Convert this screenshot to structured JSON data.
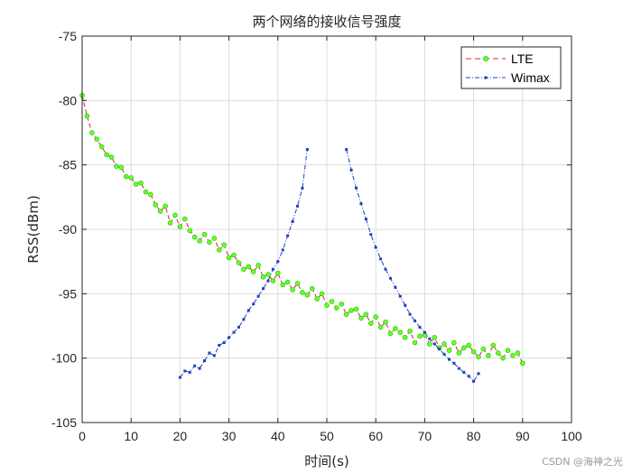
{
  "chart_data": {
    "type": "line",
    "title": "两个网络的接收信号强度",
    "xlabel": "时间(s)",
    "ylabel": "RSS(dBm)",
    "xlim": [
      0,
      100
    ],
    "ylim": [
      -105,
      -75
    ],
    "xticks": [
      "0",
      "10",
      "20",
      "30",
      "40",
      "50",
      "60",
      "70",
      "80",
      "90",
      "100"
    ],
    "yticks": [
      "-75",
      "-80",
      "-85",
      "-90",
      "-95",
      "-100",
      "-105"
    ],
    "grid": true,
    "legend_position": "top-right",
    "colors": {
      "lte_line": "#d62728",
      "lte_marker": "#66ff33",
      "wimax": "#1f3fbf"
    },
    "series": [
      {
        "name": "LTE",
        "x": [
          0,
          1,
          2,
          3,
          4,
          5,
          6,
          7,
          8,
          9,
          10,
          11,
          12,
          13,
          14,
          15,
          16,
          17,
          18,
          19,
          20,
          21,
          22,
          23,
          24,
          25,
          26,
          27,
          28,
          29,
          30,
          31,
          32,
          33,
          34,
          35,
          36,
          37,
          38,
          39,
          40,
          41,
          42,
          43,
          44,
          45,
          46,
          47,
          48,
          49,
          50,
          51,
          52,
          53,
          54,
          55,
          56,
          57,
          58,
          59,
          60,
          61,
          62,
          63,
          64,
          65,
          66,
          67,
          68,
          69,
          70,
          71,
          72,
          73,
          74,
          75,
          76,
          77,
          78,
          79,
          80,
          81,
          82,
          83,
          84,
          85,
          86,
          87,
          88,
          89,
          90
        ],
        "values": [
          -79.6,
          -81.2,
          -82.5,
          -83.0,
          -83.6,
          -84.2,
          -84.4,
          -85.1,
          -85.2,
          -85.9,
          -86.0,
          -86.5,
          -86.4,
          -87.1,
          -87.3,
          -88.1,
          -88.6,
          -88.2,
          -89.5,
          -88.9,
          -89.8,
          -89.2,
          -90.1,
          -90.6,
          -90.9,
          -90.4,
          -91.0,
          -90.7,
          -91.6,
          -91.2,
          -92.2,
          -92.0,
          -92.6,
          -93.1,
          -92.9,
          -93.3,
          -92.8,
          -93.7,
          -93.5,
          -94.0,
          -93.4,
          -94.3,
          -94.1,
          -94.7,
          -94.2,
          -94.9,
          -95.1,
          -94.6,
          -95.4,
          -95.0,
          -95.9,
          -95.6,
          -96.1,
          -95.8,
          -96.6,
          -96.3,
          -96.2,
          -96.9,
          -96.6,
          -97.3,
          -96.8,
          -97.6,
          -97.2,
          -98.1,
          -97.7,
          -98.0,
          -98.4,
          -97.9,
          -98.8,
          -98.3,
          -98.2,
          -98.9,
          -98.4,
          -99.2,
          -98.9,
          -99.4,
          -98.8,
          -99.6,
          -99.2,
          -99.0,
          -99.5,
          -99.9,
          -99.3,
          -99.8,
          -99.0,
          -99.6,
          -100.0,
          -99.4,
          -99.8,
          -99.6,
          -100.4
        ]
      },
      {
        "name": "Wimax",
        "x": [
          20,
          21,
          22,
          23,
          24,
          25,
          26,
          27,
          28,
          29,
          30,
          31,
          32,
          33,
          34,
          35,
          36,
          37,
          38,
          39,
          40,
          41,
          42,
          43,
          44,
          45,
          46,
          54,
          55,
          56,
          57,
          58,
          59,
          60,
          61,
          62,
          63,
          64,
          65,
          66,
          67,
          68,
          69,
          70,
          71,
          72,
          73,
          74,
          75,
          76,
          77,
          78,
          79,
          80,
          81
        ],
        "values": [
          -101.5,
          -101.0,
          -101.1,
          -100.6,
          -100.8,
          -100.2,
          -99.6,
          -99.8,
          -99.0,
          -98.8,
          -98.4,
          -98.0,
          -97.6,
          -97.0,
          -96.3,
          -95.8,
          -95.2,
          -94.6,
          -94.0,
          -93.1,
          -92.5,
          -91.6,
          -90.5,
          -89.4,
          -88.2,
          -86.8,
          -83.8,
          -83.8,
          -85.4,
          -86.8,
          -88.0,
          -89.2,
          -90.4,
          -91.4,
          -92.3,
          -93.1,
          -93.8,
          -94.5,
          -95.2,
          -95.9,
          -96.6,
          -97.1,
          -97.6,
          -98.0,
          -98.5,
          -98.9,
          -99.3,
          -99.7,
          -100.1,
          -100.4,
          -100.8,
          -101.1,
          -101.4,
          -101.8,
          -101.2
        ]
      }
    ]
  },
  "watermark": "CSDN @海神之光"
}
